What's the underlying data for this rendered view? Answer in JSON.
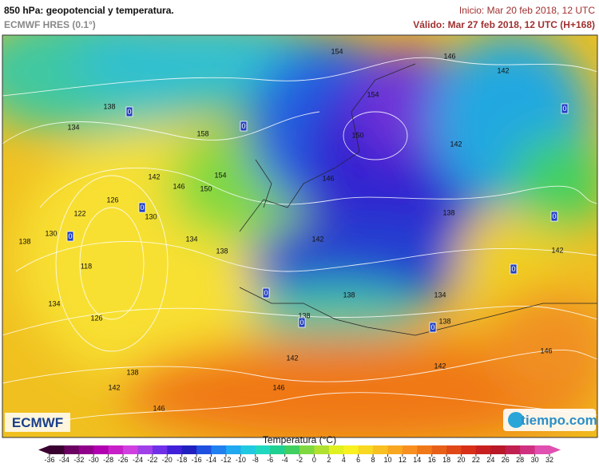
{
  "header": {
    "title": "850 hPa: geopotencial y temperatura.",
    "subtitle": "ECMWF HRES (0.1°)",
    "init": "Inicio: Mar 20 feb 2018, 12 UTC",
    "valid": "Válido: Mar 27 feb 2018, 12 UTC (H+168)"
  },
  "map": {
    "contour_labels": [
      "154",
      "146",
      "142",
      "138",
      "154",
      "134",
      "158",
      "150",
      "142",
      "142",
      "154",
      "146",
      "150",
      "146",
      "126",
      "130",
      "122",
      "138",
      "130",
      "138",
      "134",
      "142",
      "138",
      "118",
      "142",
      "138",
      "134",
      "134",
      "138",
      "126",
      "138",
      "146",
      "142",
      "142",
      "138",
      "142",
      "146",
      "146"
    ],
    "isotherm_labels": [
      "0",
      "0",
      "0",
      "0",
      "0",
      "0",
      "0",
      "0",
      "0",
      "0"
    ]
  },
  "logos": {
    "left": "ECMWF",
    "right": "tiempo.com"
  },
  "colorbar": {
    "title": "Temperatura (°C)",
    "ticks": [
      "-36",
      "-34",
      "-32",
      "-30",
      "-28",
      "-26",
      "-24",
      "-22",
      "-20",
      "-18",
      "-16",
      "-14",
      "-12",
      "-10",
      "-8",
      "-6",
      "-4",
      "-2",
      "0",
      "2",
      "4",
      "6",
      "8",
      "10",
      "12",
      "14",
      "16",
      "18",
      "20",
      "22",
      "24",
      "26",
      "28",
      "30",
      "32"
    ],
    "colors": [
      "#3a0030",
      "#6a0060",
      "#90008a",
      "#b000b0",
      "#c820c8",
      "#d040e0",
      "#a040e8",
      "#7030e8",
      "#4020d8",
      "#2020c0",
      "#2050e0",
      "#2080f0",
      "#20a8f0",
      "#20c8e0",
      "#20d8c0",
      "#20d090",
      "#40d060",
      "#80d840",
      "#b0e030",
      "#e0f020",
      "#f8f020",
      "#f8d820",
      "#f8c020",
      "#f8a820",
      "#f89020",
      "#f07818",
      "#e86018",
      "#e04818",
      "#d83018",
      "#c82020",
      "#b81828",
      "#c02050",
      "#d03080",
      "#e050b0"
    ]
  }
}
